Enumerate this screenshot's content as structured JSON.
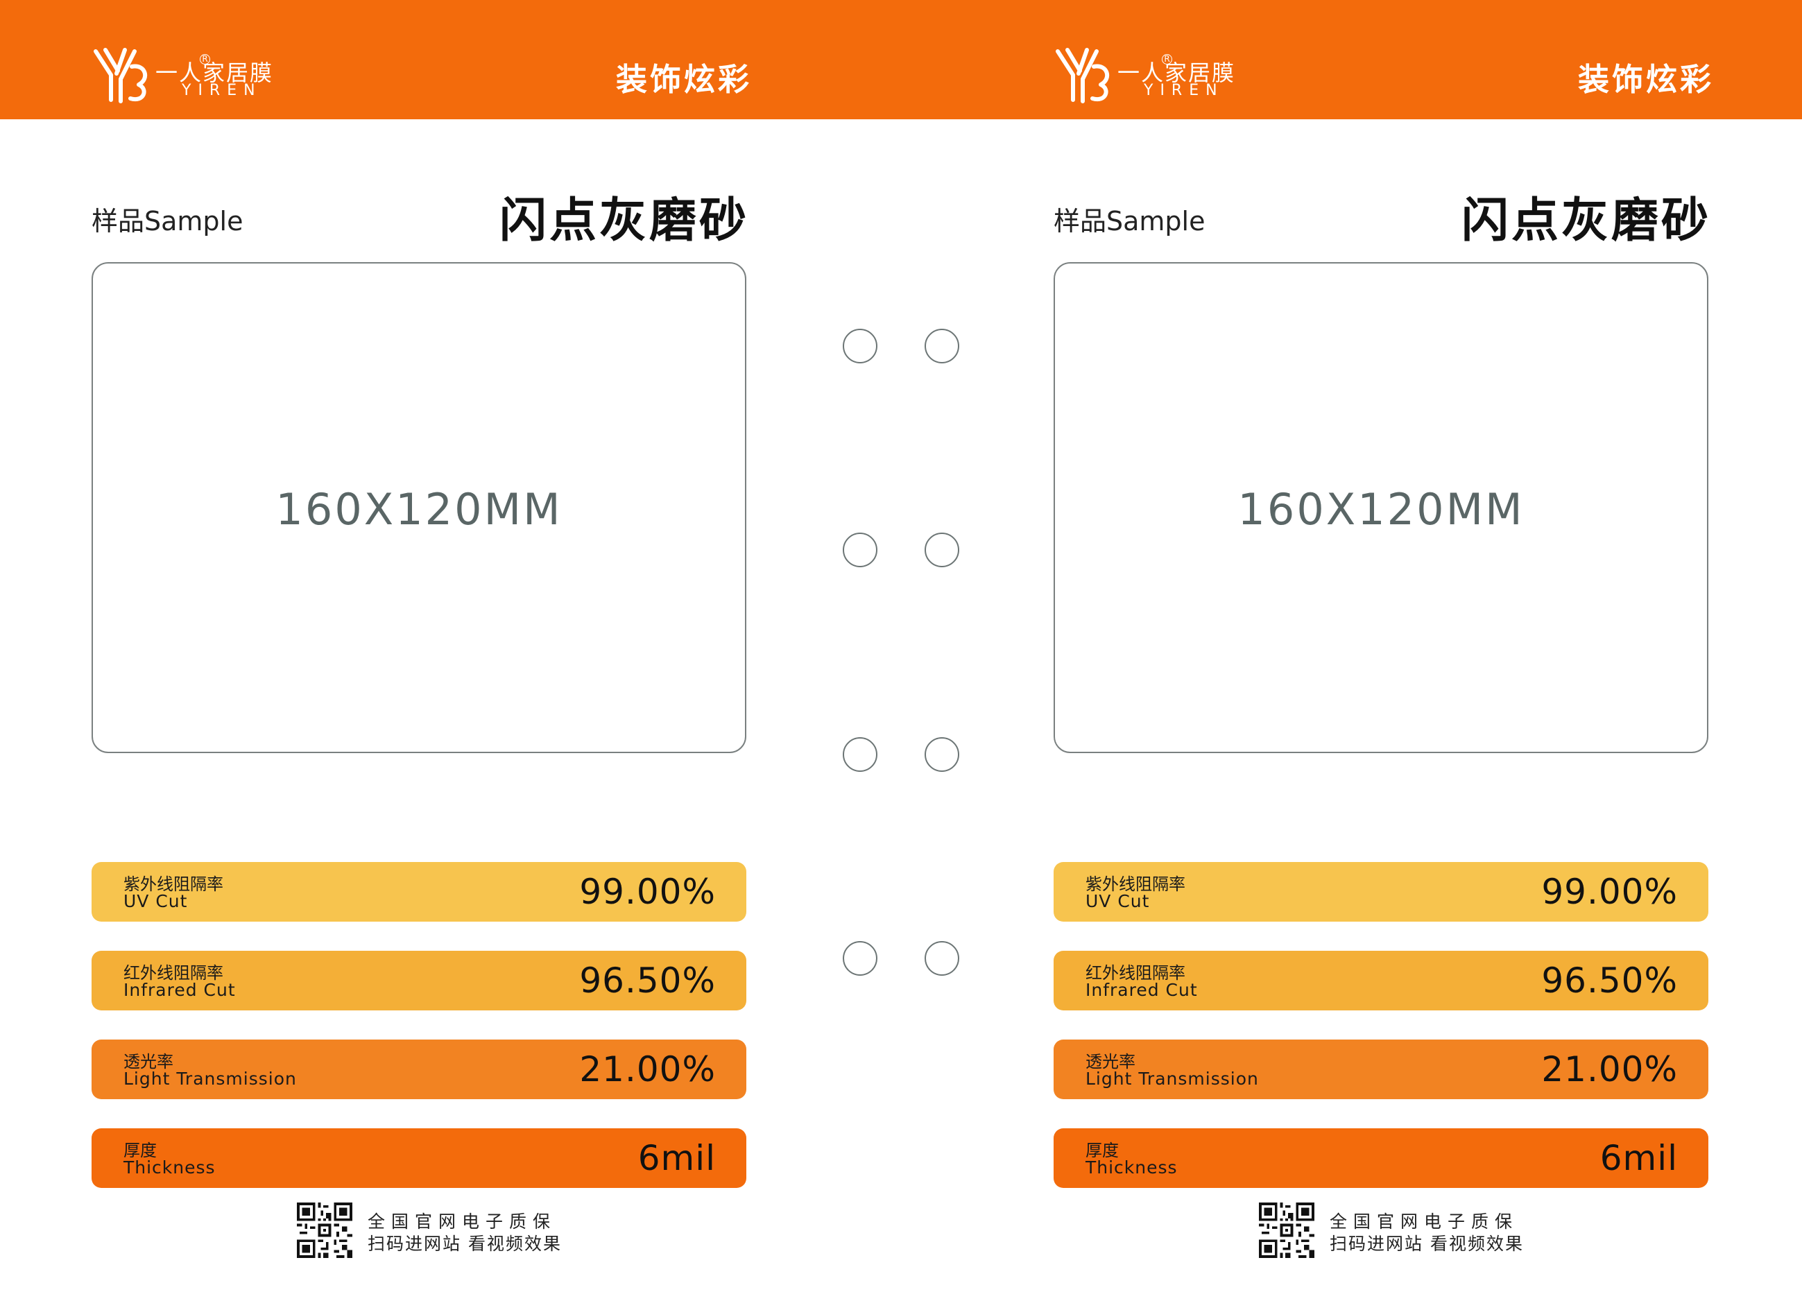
{
  "brand": {
    "logo_cn": "一人家居膜",
    "logo_en": "YIREN",
    "registered_mark": "R",
    "slogan": "装饰炫彩"
  },
  "sample": {
    "label": "样品Sample",
    "product_name": "闪点灰磨砂",
    "dimension": "160X120MM"
  },
  "specs": [
    {
      "cn": "紫外线阻隔率",
      "en": "UV Cut",
      "value": "99.00%"
    },
    {
      "cn": "红外线阻隔率",
      "en": "Infrared Cut",
      "value": "96.50%"
    },
    {
      "cn": "透光率",
      "en": "Light Transmission",
      "value": "21.00%"
    },
    {
      "cn": "厚度",
      "en": "Thickness",
      "value": "6mil"
    }
  ],
  "footer": {
    "qr_icon": "qr-code-icon",
    "line1": "全国官网电子质保",
    "line2": "扫码进网站 看视频效果"
  },
  "colors": {
    "brand_orange": "#f36b0c",
    "uv_bar": "#f7c44e",
    "infrared_bar": "#f4af37",
    "transmission_bar": "#f28322",
    "thickness_bar": "#f36b0c"
  }
}
